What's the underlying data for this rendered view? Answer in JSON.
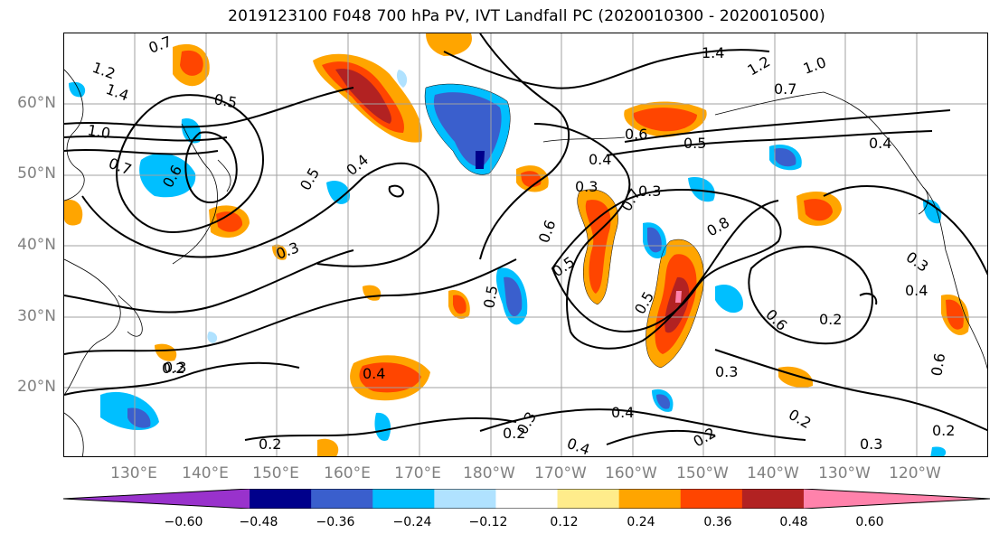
{
  "title": "2019123100 F048 700 hPa PV, IVT Landfall PC (2020010300 - 2020010500)",
  "lat_labels": [
    "60°N",
    "50°N",
    "40°N",
    "30°N",
    "20°N"
  ],
  "lon_labels": [
    "130°E",
    "140°E",
    "150°E",
    "160°E",
    "170°E",
    "180°W",
    "170°W",
    "160°W",
    "150°W",
    "140°W",
    "130°W",
    "120°W"
  ],
  "colorbar": {
    "ticks": [
      "−0.60",
      "−0.48",
      "−0.36",
      "−0.24",
      "−0.12",
      "0.12",
      "0.24",
      "0.36",
      "0.48",
      "0.60"
    ],
    "colors": [
      "#9932cc",
      "#00008b",
      "#3a5fcd",
      "#00bfff",
      "#b0e2ff",
      "#ffffff",
      "#ffec8b",
      "#ffa500",
      "#ff4500",
      "#b22222",
      "#ff82ab"
    ]
  },
  "contour_labels": [
    "1.2",
    "1.4",
    "0.7",
    "0.5",
    "1.0",
    "0.7",
    "0.6",
    "0.3",
    "0.4",
    "0.3",
    "0.4",
    "0.2",
    "0.2",
    "0.5",
    "0.5",
    "0.5",
    "0.6",
    "0.7",
    "0.3",
    "0.4",
    "0.5",
    "0.6",
    "0.2",
    "0.3",
    "0.4",
    "0.2",
    "0.3",
    "0.2",
    "0.2",
    "1.4",
    "1.2",
    "1.0",
    "0.7",
    "0.6",
    "0.5",
    "0.4",
    "0.8",
    "0.3",
    "0.3",
    "0.2",
    "0.4",
    "0.3",
    "0.4",
    "0.6"
  ]
}
